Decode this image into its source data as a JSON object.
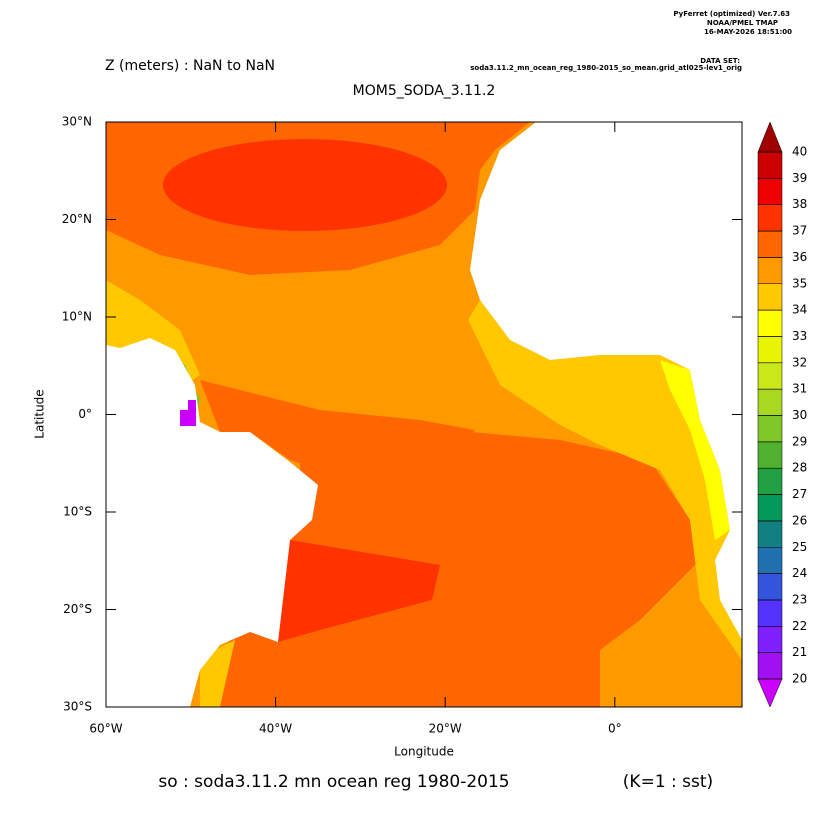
{
  "header": {
    "software": "PyFerret (optimized) Ver.7.63",
    "org": "NOAA/PMEL TMAP",
    "timestamp": "16-MAY-2026 18:51:00",
    "dataset_label": "DATA SET:",
    "dataset": "soda3.11.2_mn_ocean_reg_1980-2015_so_mean.grid_atl025-lev1_orig"
  },
  "chart_data": {
    "type": "map",
    "title": "MOM5_SODA_3.11.2",
    "subtitle": "Z (meters) : NaN to NaN",
    "x_label": "Longitude",
    "y_label": "Latitude",
    "caption": "so : soda3.11.2 mn ocean reg 1980-2015",
    "caption_note": "(K=1 : sst)",
    "xlim": [
      -60,
      15
    ],
    "ylim": [
      -30,
      30
    ],
    "xticks": [
      {
        "value": -60,
        "label": "60°W"
      },
      {
        "value": -40,
        "label": "40°W"
      },
      {
        "value": -20,
        "label": "20°W"
      },
      {
        "value": 0,
        "label": "0°"
      }
    ],
    "yticks": [
      {
        "value": -30,
        "label": "30°S"
      },
      {
        "value": -20,
        "label": "20°S"
      },
      {
        "value": -10,
        "label": "10°S"
      },
      {
        "value": 0,
        "label": "0°"
      },
      {
        "value": 10,
        "label": "10°N"
      },
      {
        "value": 20,
        "label": "20°N"
      },
      {
        "value": 30,
        "label": "30°N"
      }
    ],
    "colorbar": {
      "levels": [
        20,
        21,
        22,
        23,
        24,
        25,
        26,
        27,
        28,
        29,
        30,
        31,
        32,
        33,
        34,
        35,
        36,
        37,
        38,
        39,
        40
      ],
      "colors": [
        "#a010f0",
        "#8020ff",
        "#5533ff",
        "#3355dd",
        "#2070b0",
        "#108080",
        "#00995a",
        "#20a040",
        "#50b030",
        "#80c828",
        "#a8d820",
        "#c8e818",
        "#e8f400",
        "#ffff00",
        "#ffc800",
        "#ff9900",
        "#ff6600",
        "#ff3300",
        "#ee0000",
        "#cc0000"
      ],
      "under_color": "#cc00ff",
      "over_color": "#a00000"
    }
  }
}
